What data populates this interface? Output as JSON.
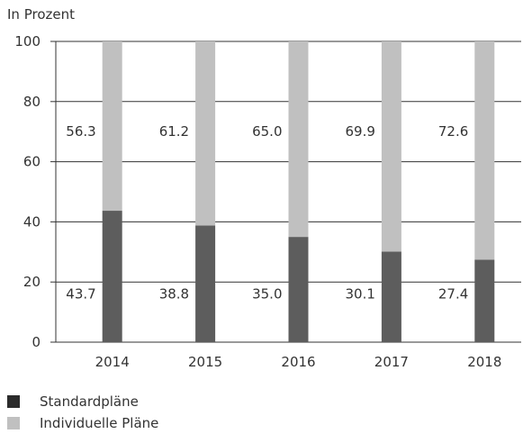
{
  "chart_data": {
    "type": "bar",
    "stacked": true,
    "unit_label": "In Prozent",
    "categories": [
      "2014",
      "2015",
      "2016",
      "2017",
      "2018"
    ],
    "series": [
      {
        "name": "Standardpläne",
        "values": [
          43.7,
          38.8,
          35.0,
          30.1,
          27.4
        ],
        "value_labels": [
          "43.7",
          "38.8",
          "35.0",
          "30.1",
          "27.4"
        ],
        "color": "#5d5d5d"
      },
      {
        "name": "Individuelle Pläne",
        "values": [
          56.3,
          61.2,
          65.0,
          69.9,
          72.6
        ],
        "value_labels": [
          "56.3",
          "61.2",
          "65.0",
          "69.9",
          "72.6"
        ],
        "color": "#c0c0c0"
      }
    ],
    "ylim": [
      0,
      100
    ],
    "yticks": [
      0,
      20,
      40,
      60,
      80,
      100
    ],
    "grid": true,
    "legend_position": "bottom-left"
  },
  "legend": {
    "items": [
      {
        "label": "Standardpläne",
        "color": "#2b2b2b"
      },
      {
        "label": "Individuelle Pläne",
        "color": "#c0c0c0"
      }
    ]
  }
}
